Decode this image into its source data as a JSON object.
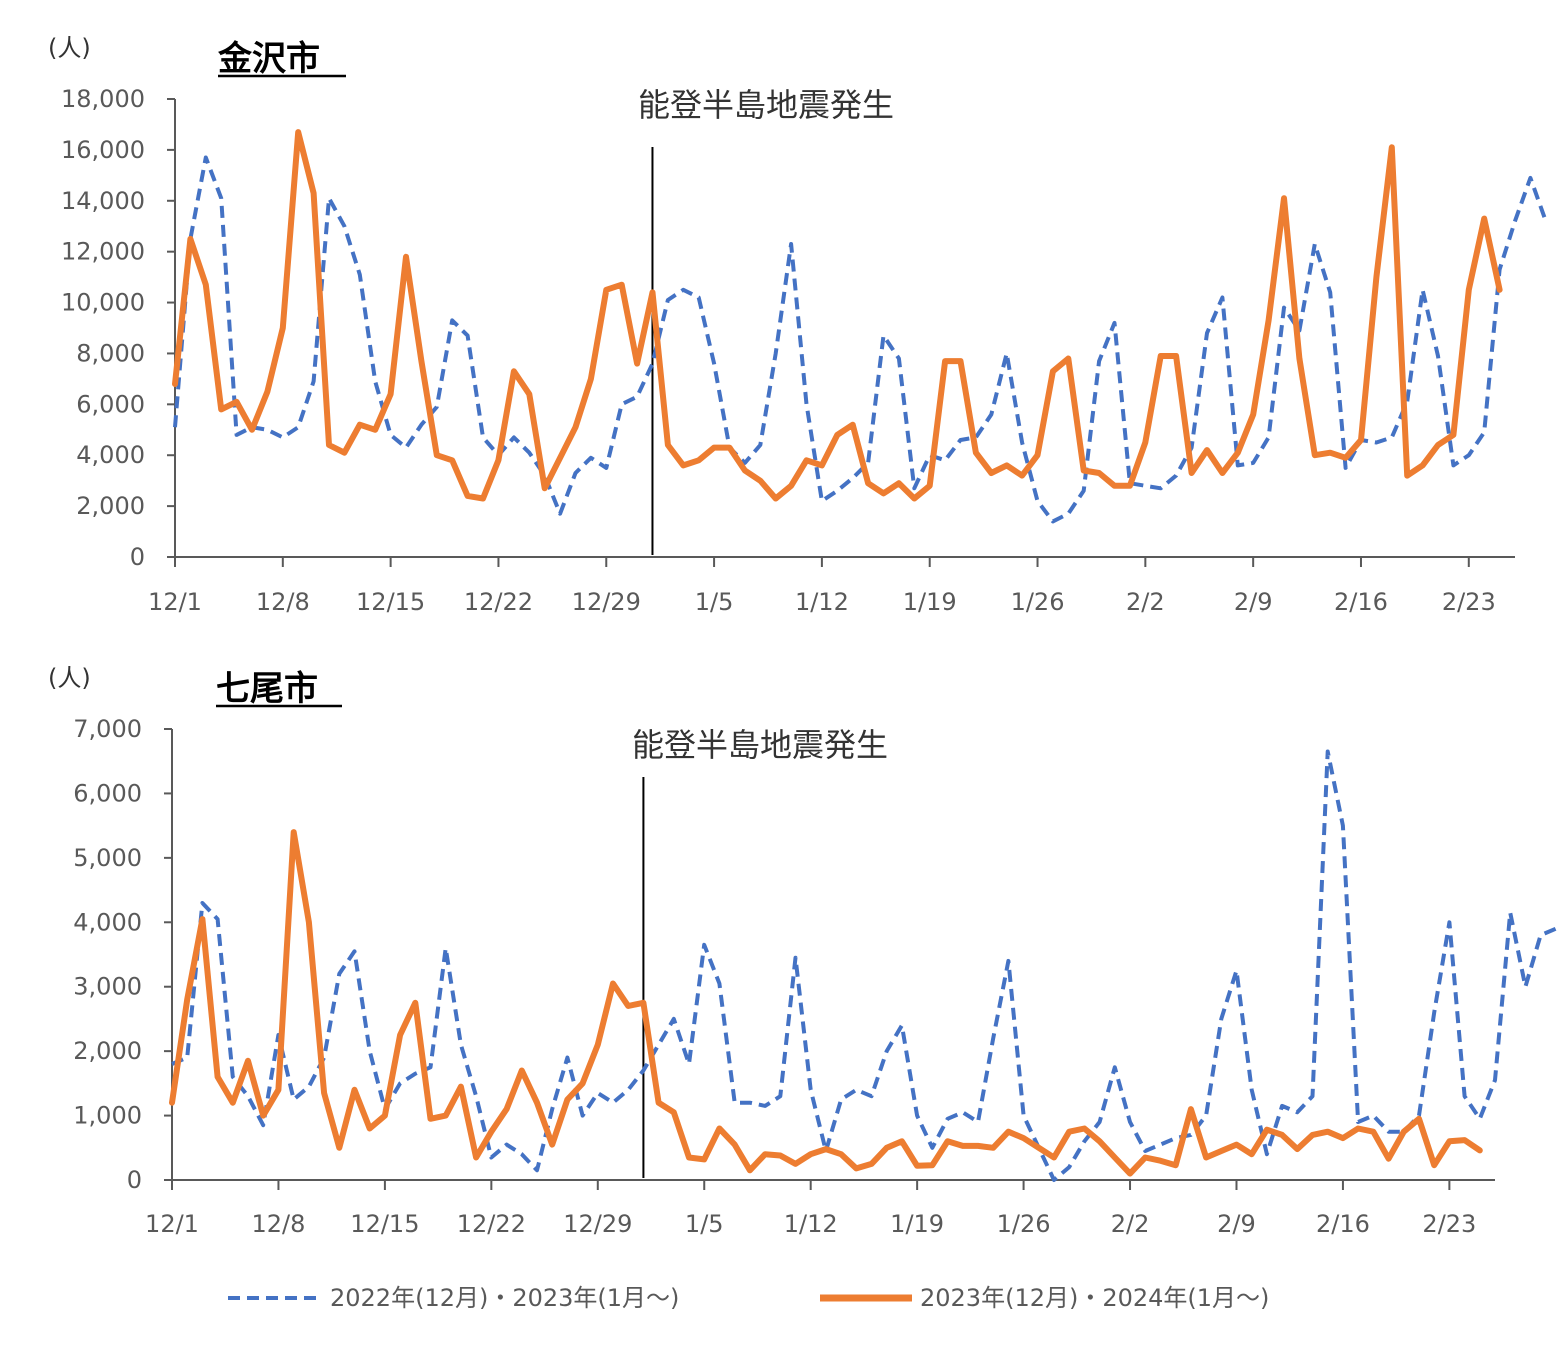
{
  "chart_data": [
    {
      "type": "line",
      "title": "金沢市",
      "unit_label": "(人)",
      "annotation": "能登半島地震発生",
      "annotation_x": "1/1",
      "ylim": [
        0,
        18000
      ],
      "yticks": [
        "0",
        "2,000",
        "4,000",
        "6,000",
        "8,000",
        "10,000",
        "12,000",
        "14,000",
        "16,000",
        "18,000"
      ],
      "xlim": [
        "12/1",
        "2/26"
      ],
      "xticks": [
        "12/1",
        "12/8",
        "12/15",
        "12/22",
        "12/29",
        "1/5",
        "1/12",
        "1/19",
        "1/26",
        "2/2",
        "2/9",
        "2/16",
        "2/23"
      ],
      "series": [
        {
          "name": "2022年(12月)・2023年(1月～)",
          "style": "dashed",
          "color": "#4472C4",
          "values": [
            5100,
            12500,
            15700,
            14100,
            4800,
            5100,
            5000,
            4700,
            5100,
            6900,
            14100,
            13000,
            11100,
            6900,
            4800,
            4300,
            5200,
            5900,
            9300,
            8700,
            4700,
            4000,
            4700,
            4100,
            3200,
            1700,
            3300,
            3900,
            3500,
            6000,
            6300,
            7600,
            10100,
            10500,
            10200,
            7600,
            4300,
            3700,
            4400,
            8000,
            12300,
            6000,
            2200,
            2600,
            3100,
            3700,
            8700,
            7800,
            2700,
            4000,
            3800,
            4600,
            4700,
            5600,
            8000,
            4500,
            2200,
            1400,
            1700,
            2600,
            7700,
            9200,
            2900,
            2800,
            2700,
            3200,
            4300,
            8800,
            10200,
            3600,
            3700,
            4700,
            9800,
            8900,
            12300,
            10400,
            3500,
            4600,
            4500,
            4700,
            6100,
            10500,
            7900,
            3600,
            4000,
            4900,
            11300,
            13200,
            14900,
            13200
          ]
        },
        {
          "name": "2023年(12月)・2024年(1月～)",
          "style": "solid",
          "color": "#ED7D31",
          "values": [
            6800,
            12500,
            10700,
            5800,
            6100,
            5000,
            6500,
            9000,
            16700,
            14300,
            4400,
            4100,
            5200,
            5000,
            6400,
            11800,
            7700,
            4000,
            3800,
            2400,
            2300,
            3800,
            7300,
            6400,
            2700,
            3900,
            5100,
            7000,
            10500,
            10700,
            7600,
            10400,
            4400,
            3600,
            3800,
            4300,
            4300,
            3400,
            3000,
            2300,
            2800,
            3800,
            3600,
            4800,
            5200,
            2900,
            2500,
            2900,
            2300,
            2800,
            7700,
            7700,
            4100,
            3300,
            3600,
            3200,
            4000,
            7300,
            7800,
            3400,
            3300,
            2800,
            2800,
            4500,
            7900,
            7900,
            3300,
            4200,
            3300,
            4100,
            5600,
            9300,
            14100,
            7800,
            4000,
            4100,
            3900,
            4600,
            11000,
            16100,
            3200,
            3600,
            4400,
            4800,
            10500,
            13300,
            10500
          ]
        }
      ]
    },
    {
      "type": "line",
      "title": "七尾市",
      "unit_label": "(人)",
      "annotation": "能登半島地震発生",
      "annotation_x": "1/1",
      "ylim": [
        0,
        7000
      ],
      "yticks": [
        "0",
        "1,000",
        "2,000",
        "3,000",
        "4,000",
        "5,000",
        "6,000",
        "7,000"
      ],
      "xlim": [
        "12/1",
        "2/26"
      ],
      "xticks": [
        "12/1",
        "12/8",
        "12/15",
        "12/22",
        "12/29",
        "1/5",
        "1/12",
        "1/19",
        "1/26",
        "2/2",
        "2/9",
        "2/16",
        "2/23"
      ],
      "series": [
        {
          "name": "2022年(12月)・2023年(1月～)",
          "style": "dashed",
          "color": "#4472C4",
          "values": [
            1800,
            1900,
            4300,
            4050,
            1600,
            1300,
            850,
            2250,
            1250,
            1450,
            1900,
            3200,
            3550,
            2000,
            1100,
            1500,
            1650,
            1750,
            3600,
            2100,
            1300,
            350,
            550,
            400,
            150,
            1100,
            1900,
            1000,
            1350,
            1200,
            1400,
            1700,
            2100,
            2500,
            1800,
            3650,
            3050,
            1200,
            1200,
            1150,
            1300,
            3450,
            1400,
            450,
            1250,
            1400,
            1300,
            2000,
            2400,
            1000,
            500,
            950,
            1050,
            900,
            2200,
            3400,
            1000,
            500,
            0,
            200,
            600,
            900,
            1750,
            900,
            450,
            550,
            650,
            700,
            1000,
            2500,
            3250,
            1400,
            400,
            1150,
            1050,
            1300,
            6650,
            5500,
            900,
            1000,
            750,
            750,
            1000,
            2600,
            4000,
            1300,
            950,
            1550,
            4150,
            3000,
            3800,
            3900
          ]
        },
        {
          "name": "2023年(12月)・2024年(1月～)",
          "style": "solid",
          "color": "#ED7D31",
          "values": [
            1200,
            2800,
            4050,
            1600,
            1200,
            1850,
            1000,
            1400,
            5400,
            4000,
            1350,
            500,
            1400,
            800,
            1000,
            2250,
            2750,
            950,
            1000,
            1450,
            350,
            750,
            1100,
            1700,
            1200,
            550,
            1250,
            1500,
            2100,
            3050,
            2700,
            2750,
            1200,
            1050,
            350,
            320,
            800,
            550,
            150,
            400,
            380,
            250,
            400,
            480,
            400,
            180,
            250,
            500,
            600,
            220,
            230,
            600,
            530,
            530,
            500,
            750,
            650,
            500,
            350,
            750,
            800,
            600,
            350,
            100,
            350,
            300,
            230,
            1100,
            350,
            450,
            550,
            400,
            780,
            700,
            480,
            700,
            750,
            650,
            800,
            750,
            330,
            750,
            950,
            230,
            600,
            620,
            460
          ]
        }
      ]
    }
  ],
  "legend": [
    {
      "label": "2022年(12月)・2023年(1月～)",
      "style": "dashed",
      "color": "#4472C4"
    },
    {
      "label": "2023年(12月)・2024年(1月～)",
      "style": "solid",
      "color": "#ED7D31"
    }
  ]
}
